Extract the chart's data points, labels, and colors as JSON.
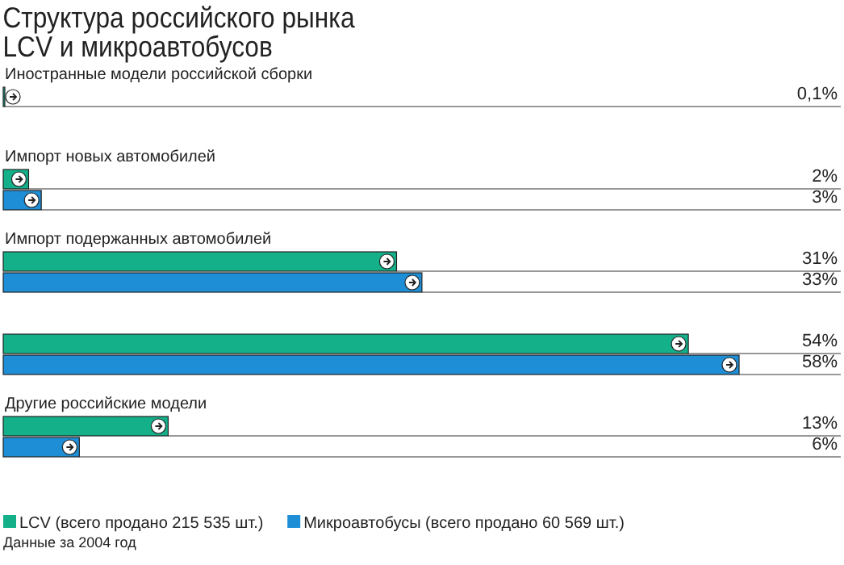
{
  "chart_data": {
    "type": "bar",
    "orientation": "horizontal",
    "title": "Структура российского рынка\nLCV и микроавтобусов",
    "categories": [
      "Иностранные модели российской сборки",
      "Импорт новых автомобилей",
      "Импорт подержанных автомобилей",
      null,
      "Другие российские модели"
    ],
    "series": [
      {
        "name": "LCV (всего продано 215 535 шт.)",
        "color": "#13b08a",
        "values": [
          0.1,
          2,
          31,
          54,
          13
        ],
        "value_labels": [
          "0,1%",
          "2%",
          "31%",
          "54%",
          "13%"
        ]
      },
      {
        "name": "Микроавтобусы (всего продано 60 569 шт.)",
        "color": "#1e8fd6",
        "values": [
          null,
          3,
          33,
          58,
          6
        ],
        "value_labels": [
          null,
          "3%",
          "33%",
          "58%",
          "6%"
        ]
      }
    ],
    "legend": "bottom left",
    "annotations": [
      "Данные за 2004 год"
    ]
  }
}
